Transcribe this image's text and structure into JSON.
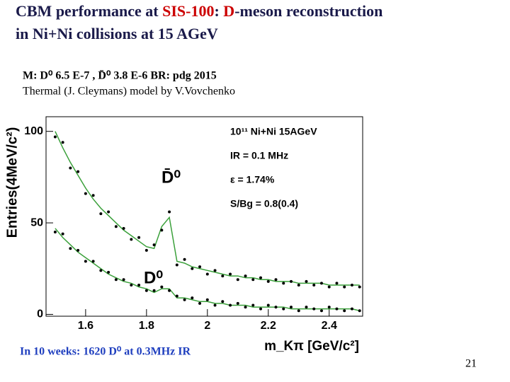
{
  "slide": {
    "title_parts": [
      "CBM performance at ",
      "SIS-100",
      ": ",
      "D",
      "-meson reconstruction"
    ],
    "title_line2": "in Ni+Ni collisions at 15 AGeV",
    "info_line1": "M: D⁰ 6.5 E-7 , D̄⁰ 3.8 E-6   BR: pdg 2015",
    "info_line2": "Thermal (J. Cleymans) model by V.Vovchenko",
    "note": "In 10 weeks: 1620 D⁰ at 0.3MHz IR",
    "page_number": "21"
  },
  "chart_data": {
    "type": "scatter",
    "x_label": "m_Kπ [GeV/c²]",
    "y_label": "Entries(4MeV/c²)",
    "annotations": [
      "10¹¹ Ni+Ni 15AGeV",
      "IR = 0.1 MHz",
      "ε = 1.74%",
      "S/Bg = 0.8(0.4)"
    ],
    "peak_labels": [
      "D̄⁰",
      "D⁰"
    ],
    "x": [
      1.5,
      1.525,
      1.55,
      1.575,
      1.6,
      1.625,
      1.65,
      1.675,
      1.7,
      1.725,
      1.75,
      1.775,
      1.8,
      1.825,
      1.85,
      1.875,
      1.9,
      1.925,
      1.95,
      1.975,
      2,
      2.025,
      2.05,
      2.075,
      2.1,
      2.125,
      2.15,
      2.175,
      2.2,
      2.225,
      2.25,
      2.275,
      2.3,
      2.325,
      2.35,
      2.375,
      2.4,
      2.425,
      2.45,
      2.475,
      2.5
    ],
    "series": [
      {
        "color": "#000000",
        "fit_color": "#3aa03a",
        "values": [
          97,
          94,
          80,
          78,
          66,
          65,
          55,
          56,
          48,
          47,
          41,
          42,
          35,
          38,
          46,
          56,
          27,
          30,
          25,
          26,
          22,
          24,
          21,
          22,
          19,
          21,
          19,
          20,
          18,
          19,
          17,
          18,
          16,
          18,
          16,
          17,
          15,
          17,
          15,
          16,
          15
        ],
        "fit": [
          100,
          91,
          83,
          76,
          69,
          63,
          58,
          54,
          50,
          46,
          43,
          40,
          37,
          36,
          48,
          53,
          29,
          28,
          26,
          25,
          24,
          23,
          22,
          21,
          21,
          20,
          20,
          19,
          19,
          18,
          18,
          18,
          17,
          17,
          17,
          17,
          16,
          16,
          16,
          16,
          16
        ]
      },
      {
        "color": "#000000",
        "fit_color": "#3aa03a",
        "values": [
          45,
          44,
          36,
          35,
          29,
          29,
          24,
          23,
          19,
          19,
          16,
          16,
          13,
          13,
          15,
          13,
          10,
          8,
          9,
          6,
          8,
          5,
          7,
          5,
          6,
          4,
          5,
          3,
          5,
          4,
          3,
          4,
          2,
          4,
          3,
          2,
          4,
          3,
          2,
          3,
          2
        ],
        "fit": [
          47,
          42,
          38,
          34,
          31,
          28,
          25,
          22,
          20,
          18,
          17,
          15,
          14,
          12,
          14,
          14,
          9,
          9,
          8,
          7,
          7,
          6,
          6,
          5,
          5,
          5,
          4,
          4,
          4,
          4,
          4,
          3,
          3,
          3,
          3,
          3,
          3,
          3,
          3,
          3,
          2
        ]
      }
    ],
    "xlim": [
      1.47,
      2.51
    ],
    "ylim": [
      -1,
      108
    ],
    "xticks": [
      1.6,
      1.8,
      2,
      2.2,
      2.4
    ],
    "yticks": [
      0,
      50,
      100
    ]
  }
}
